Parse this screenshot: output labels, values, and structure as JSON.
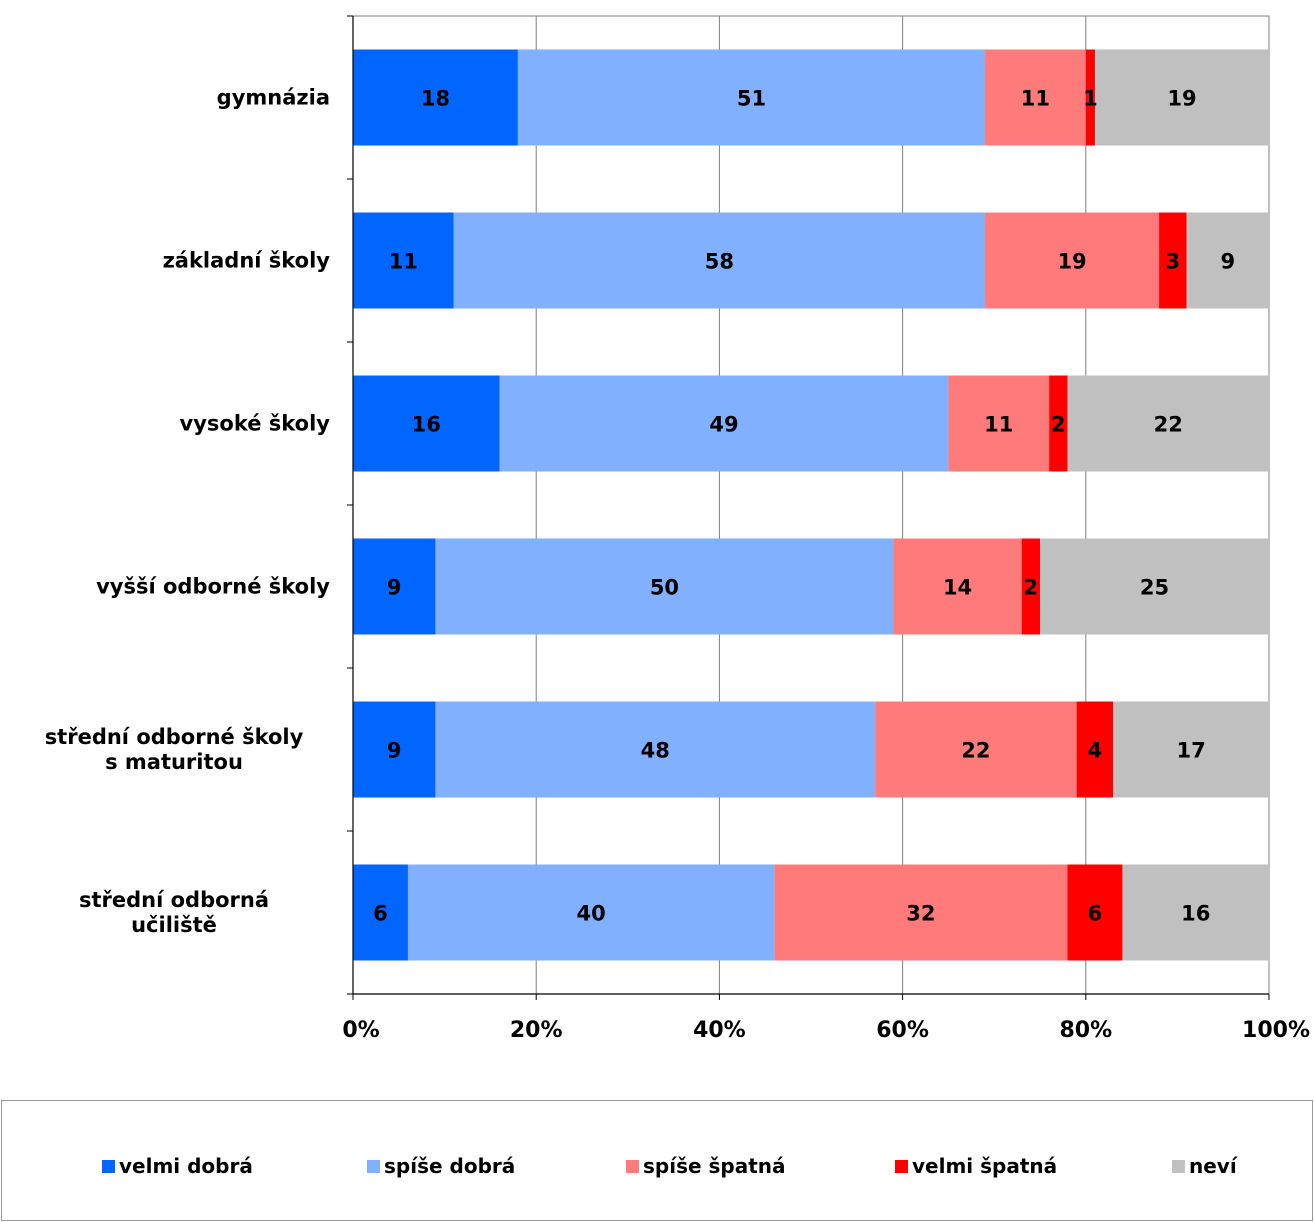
{
  "chart_data": {
    "type": "bar",
    "orientation": "horizontal",
    "stacked": "percent",
    "categories": [
      "gymnázia",
      "základní školy",
      "vysoké školy",
      "vyšší odborné školy",
      "střední odborné školy s maturitou",
      "střední odborná učiliště"
    ],
    "series": [
      {
        "name": "velmi dobrá",
        "color": "#0066ff",
        "values": [
          18,
          11,
          16,
          9,
          9,
          6
        ]
      },
      {
        "name": "spíše dobrá",
        "color": "#80b0ff",
        "values": [
          51,
          58,
          49,
          50,
          48,
          40
        ]
      },
      {
        "name": "spíše špatná",
        "color": "#ff7b7b",
        "values": [
          11,
          19,
          11,
          14,
          22,
          32
        ]
      },
      {
        "name": "velmi špatná",
        "color": "#ff0000",
        "values": [
          1,
          3,
          2,
          2,
          4,
          6
        ]
      },
      {
        "name": "neví",
        "color": "#c0c0c0",
        "values": [
          19,
          9,
          22,
          25,
          17,
          16
        ]
      }
    ],
    "xlim": [
      0,
      100
    ],
    "xticks": [
      "0%",
      "20%",
      "40%",
      "60%",
      "80%",
      "100%"
    ],
    "grid": "vertical",
    "legend": "bottom"
  }
}
